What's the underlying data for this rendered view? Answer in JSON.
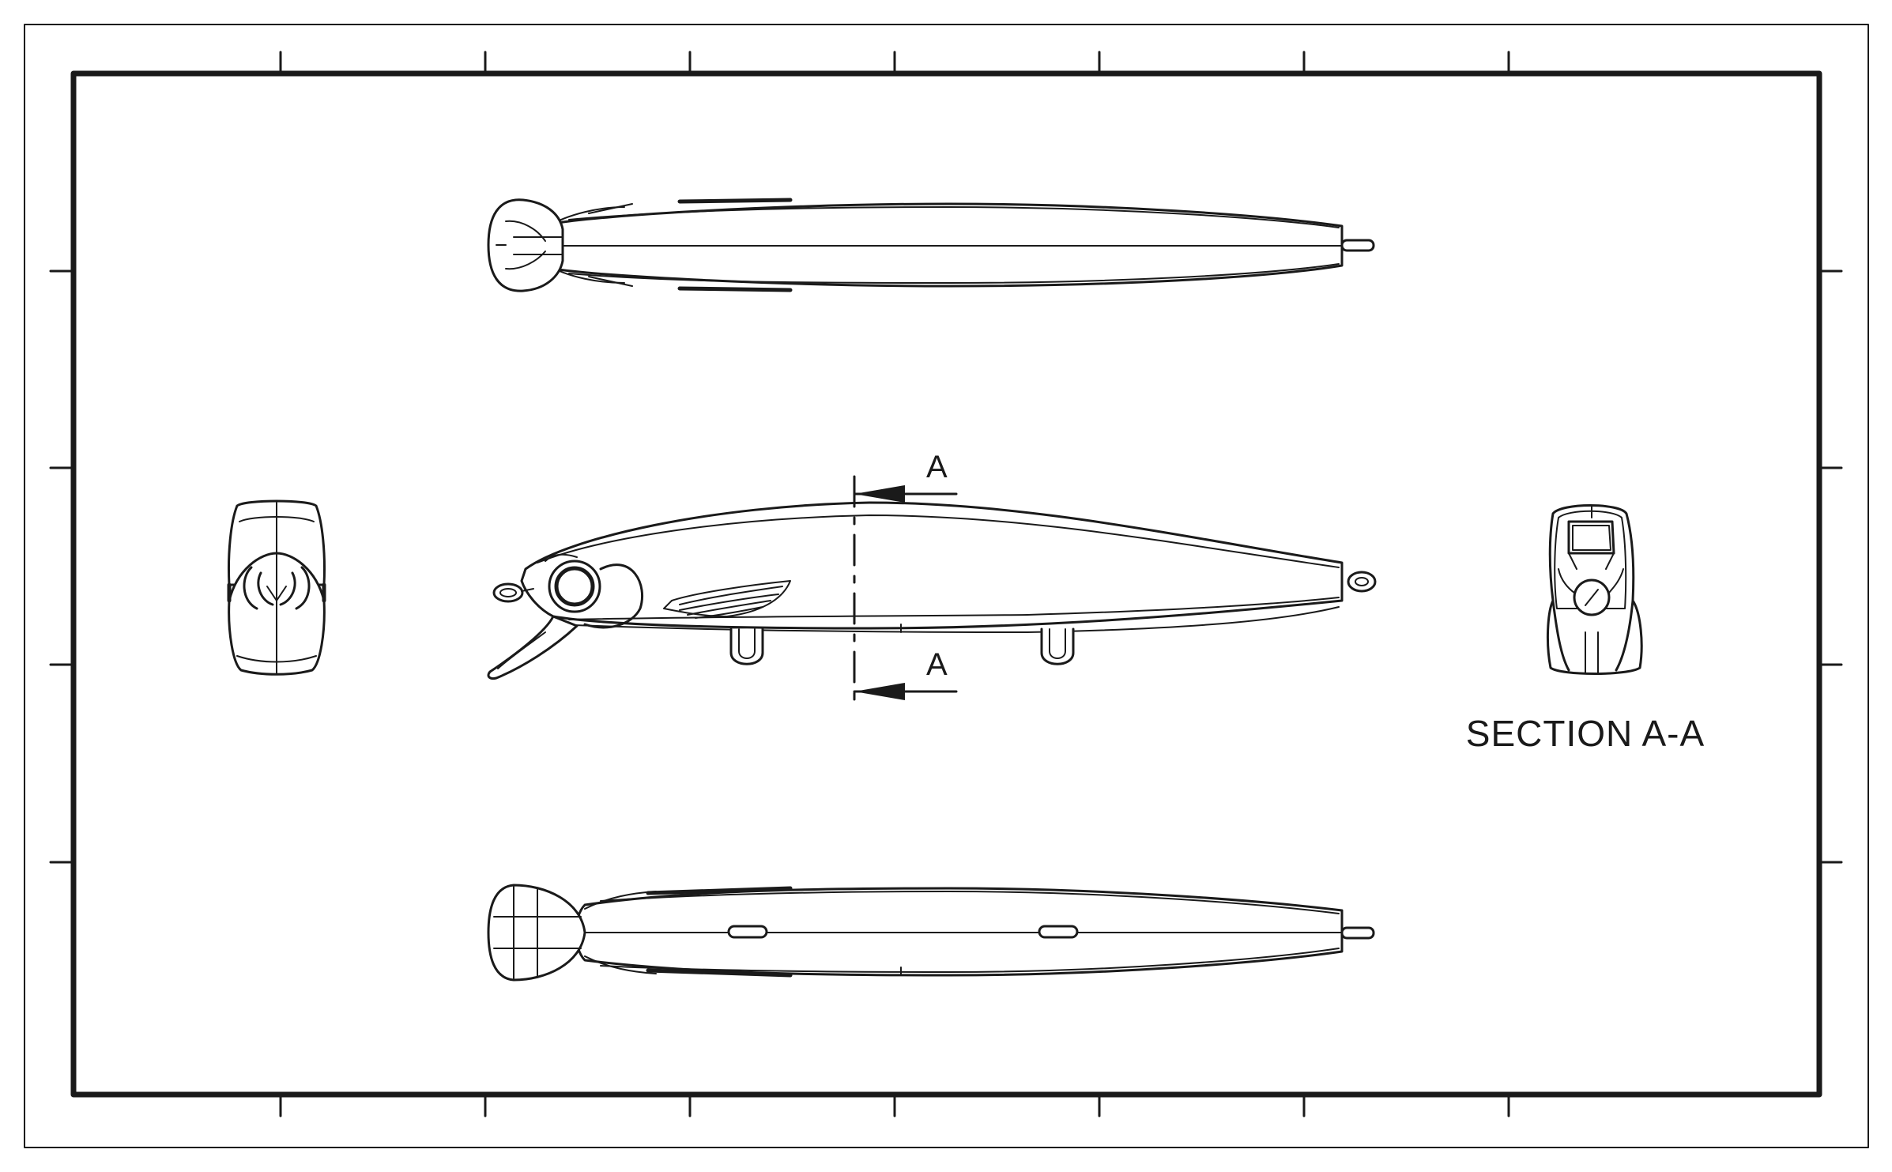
{
  "section": {
    "cut_label_top": "A",
    "cut_label_bottom": "A",
    "view_title": "SECTION A-A"
  },
  "colors": {
    "line": "#1a1a1a",
    "background": "#ffffff"
  }
}
